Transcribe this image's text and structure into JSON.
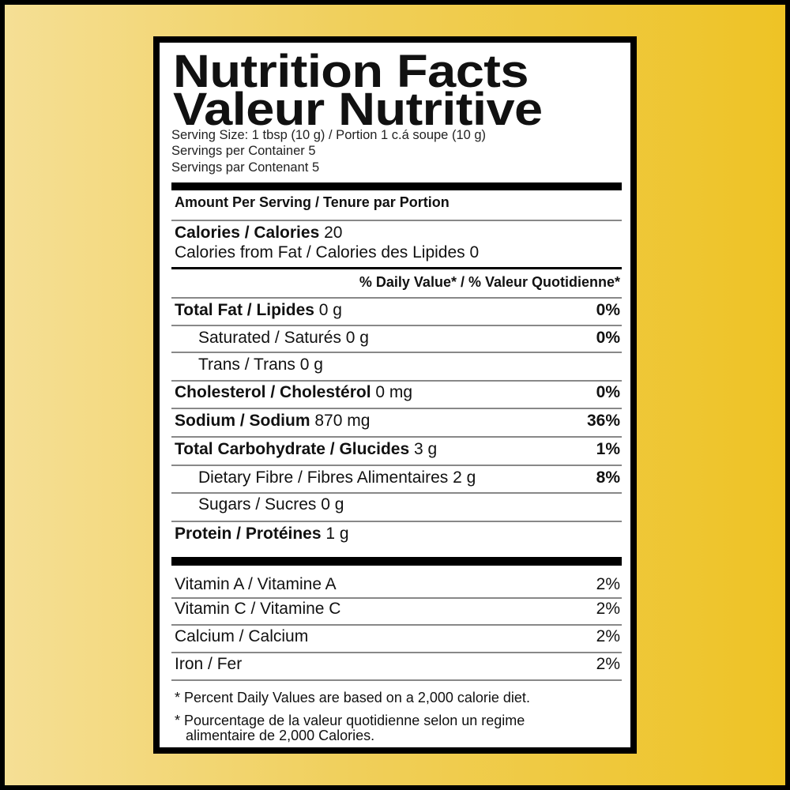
{
  "title_en": "Nutrition Facts",
  "title_fr": "Valeur Nutritive",
  "serving_size": "Serving Size: 1 tbsp (10 g) / Portion 1 c.á soupe (10 g)",
  "servings_en": "Servings per Container 5",
  "servings_fr": "Servings par Contenant 5",
  "amount_header": "Amount Per Serving / Tenure par Portion",
  "calories": {
    "label": "Calories / Calories",
    "value": "20"
  },
  "calories_fat": "Calories from Fat / Calories des Lipides 0",
  "dv_header": "% Daily Value* / % Valeur Quotidienne*",
  "nutrients": [
    {
      "label": "Total Fat / Lipides",
      "amount": "0 g",
      "dv": "0%"
    },
    {
      "label": "Saturated / Saturés",
      "amount": "0 g",
      "dv": "0%"
    },
    {
      "label": "Trans / Trans",
      "amount": "0 g",
      "dv": ""
    },
    {
      "label": "Cholesterol / Cholestérol",
      "amount": "0 mg",
      "dv": "0%"
    },
    {
      "label": "Sodium / Sodium",
      "amount": "870 mg",
      "dv": "36%"
    },
    {
      "label": "Total Carbohydrate / Glucides",
      "amount": "3 g",
      "dv": "1%"
    },
    {
      "label": "Dietary Fibre / Fibres Alimentaires",
      "amount": "2 g",
      "dv": "8%"
    },
    {
      "label": "Sugars / Sucres",
      "amount": "0 g",
      "dv": ""
    },
    {
      "label": "Protein / Protéines",
      "amount": "1 g",
      "dv": ""
    }
  ],
  "vitamins": [
    {
      "label": "Vitamin A / Vitamine A",
      "dv": "2%"
    },
    {
      "label": "Vitamin C / Vitamine C",
      "dv": "2%"
    },
    {
      "label": "Calcium / Calcium",
      "dv": "2%"
    },
    {
      "label": "Iron / Fer",
      "dv": "2%"
    }
  ],
  "footnote_en": "* Percent Daily Values are based on a 2,000 calorie diet.",
  "footnote_fr_1": "* Pourcentage de la valeur quotidienne selon un regime",
  "footnote_fr_2": "alimentaire de 2,000 Calories."
}
